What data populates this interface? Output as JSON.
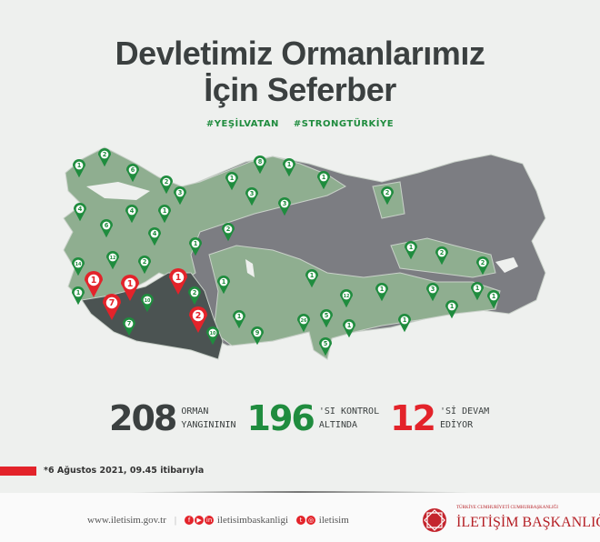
{
  "title": {
    "line1": "Devletimiz Ormanlarımız",
    "line2": "İçin Seferber"
  },
  "hashtags": [
    "#YEŞİLVATAN",
    "#STRONGTÜRKİYE"
  ],
  "colors": {
    "dark": "#3b4040",
    "green": "#1f8c3e",
    "red": "#e3232a",
    "map_green": "#8fae90",
    "map_gray": "#7c7d82",
    "map_dark": "#4b5352"
  },
  "map": {
    "green_pins": [
      "1",
      "2",
      "6",
      "2",
      "3",
      "4",
      "4",
      "1",
      "6",
      "4",
      "12",
      "2",
      "14",
      "1",
      "10",
      "7",
      "2",
      "10",
      "1",
      "1",
      "9",
      "26",
      "5",
      "1",
      "5",
      "1",
      "8",
      "1",
      "1",
      "3",
      "3",
      "2",
      "2",
      "1",
      "2",
      "2",
      "1",
      "12",
      "1",
      "3",
      "1",
      "1",
      "1",
      "1",
      "1"
    ],
    "red_pins": [
      "1",
      "7",
      "1",
      "1",
      "2"
    ]
  },
  "stats": [
    {
      "number": "208",
      "label": "ORMAN\nYANGINININ",
      "color": "#3b4040"
    },
    {
      "number": "196",
      "label": "'SI KONTROL\nALTINDA",
      "color": "#1f8c3e"
    },
    {
      "number": "12",
      "label": "'Sİ DEVAM\nEDİYOR",
      "color": "#e3232a"
    }
  ],
  "footnote": "*6 Ağustos 2021, 09.45 itibarıyla",
  "footer": {
    "website": "www.iletisim.gov.tr",
    "social1": "iletisimbaskanligi",
    "social2": "iletisim",
    "org_small": "TÜRKİYE CUMHURİYETİ CUMHURBAŞKANLIĞI",
    "org": "İLETİŞİM BAŞKANLIĞI"
  }
}
